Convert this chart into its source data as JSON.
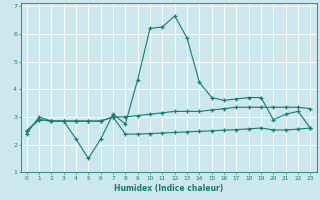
{
  "xlabel": "Humidex (Indice chaleur)",
  "bg_color": "#cce8ee",
  "grid_color": "#ffffff",
  "line_color": "#1a7a6e",
  "xlim": [
    -0.5,
    23.5
  ],
  "ylim": [
    1,
    7.1
  ],
  "yticks": [
    1,
    2,
    3,
    4,
    5,
    6,
    7
  ],
  "xticks": [
    0,
    1,
    2,
    3,
    4,
    5,
    6,
    7,
    8,
    9,
    10,
    11,
    12,
    13,
    14,
    15,
    16,
    17,
    18,
    19,
    20,
    21,
    22,
    23
  ],
  "line1_x": [
    0,
    1,
    2,
    3,
    4,
    5,
    6,
    7,
    8,
    9,
    10,
    11,
    12,
    13,
    14,
    15,
    16,
    17,
    18,
    19,
    20,
    21,
    22,
    23
  ],
  "line1_y": [
    2.4,
    3.0,
    2.85,
    2.85,
    2.2,
    1.5,
    2.2,
    3.1,
    2.75,
    4.35,
    6.2,
    6.25,
    6.65,
    5.85,
    4.25,
    3.7,
    3.6,
    3.65,
    3.7,
    3.7,
    2.9,
    3.1,
    3.2,
    2.6
  ],
  "line2_x": [
    0,
    1,
    2,
    3,
    4,
    5,
    6,
    7,
    8,
    9,
    10,
    11,
    12,
    13,
    14,
    15,
    16,
    17,
    18,
    19,
    20,
    21,
    22,
    23
  ],
  "line2_y": [
    2.5,
    2.9,
    2.85,
    2.85,
    2.85,
    2.85,
    2.85,
    3.0,
    3.0,
    3.05,
    3.1,
    3.15,
    3.2,
    3.2,
    3.2,
    3.25,
    3.3,
    3.35,
    3.35,
    3.35,
    3.35,
    3.35,
    3.35,
    3.3
  ],
  "line3_x": [
    0,
    1,
    2,
    3,
    4,
    5,
    6,
    7,
    8,
    9,
    10,
    11,
    12,
    13,
    14,
    15,
    16,
    17,
    18,
    19,
    20,
    21,
    22,
    23
  ],
  "line3_y": [
    2.5,
    2.9,
    2.85,
    2.85,
    2.85,
    2.85,
    2.85,
    3.0,
    2.38,
    2.38,
    2.4,
    2.42,
    2.44,
    2.46,
    2.48,
    2.5,
    2.52,
    2.54,
    2.57,
    2.6,
    2.53,
    2.53,
    2.56,
    2.6
  ]
}
